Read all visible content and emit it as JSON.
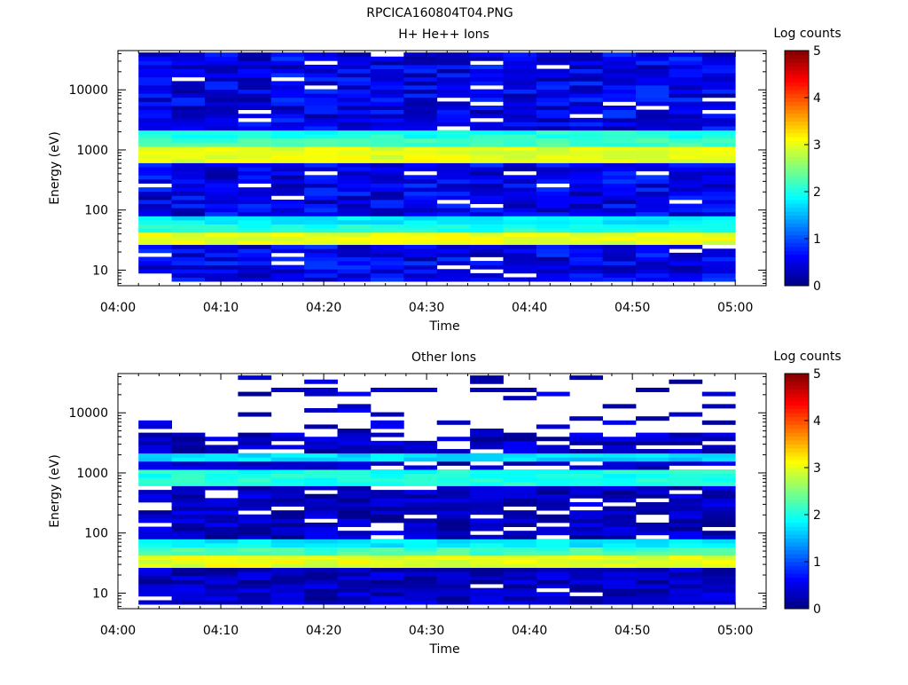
{
  "figure_title": "RPCICA160804T04.PNG",
  "chart_data": [
    {
      "type": "heatmap",
      "title": "H+ He++ Ions",
      "xlabel": "Time",
      "ylabel": "Energy (eV)",
      "x_ticks": [
        "04:00",
        "04:10",
        "04:20",
        "04:30",
        "04:40",
        "04:50",
        "05:00"
      ],
      "x_range": [
        "04:00",
        "05:03"
      ],
      "data_time_range": [
        "04:02",
        "05:00"
      ],
      "y_scale": "log",
      "y_ticks": [
        "10",
        "100",
        "1000",
        "10000"
      ],
      "y_range": [
        5.5,
        45000
      ],
      "colorbar_label": "Log counts",
      "colorbar_ticks": [
        "0",
        "1",
        "2",
        "3",
        "4",
        "5"
      ],
      "colorbar_range": [
        0,
        5
      ],
      "colormap": "jet",
      "grid": false,
      "bands": [
        {
          "energy_range_eV": [
            28,
            45
          ],
          "log_counts": 3.0
        },
        {
          "energy_range_eV": [
            45,
            60
          ],
          "log_counts": 2.0
        },
        {
          "energy_range_eV": [
            60,
            75
          ],
          "log_counts": 1.8
        },
        {
          "energy_range_eV": [
            650,
            1100
          ],
          "log_counts": 3.0
        },
        {
          "energy_range_eV": [
            1100,
            1500
          ],
          "log_counts": 2.2
        },
        {
          "energy_range_eV": [
            1500,
            2300
          ],
          "log_counts": 2.0
        }
      ]
    },
    {
      "type": "heatmap",
      "title": "Other Ions",
      "xlabel": "Time",
      "ylabel": "Energy (eV)",
      "x_ticks": [
        "04:00",
        "04:10",
        "04:20",
        "04:30",
        "04:40",
        "04:50",
        "05:00"
      ],
      "x_range": [
        "04:00",
        "05:03"
      ],
      "data_time_range": [
        "04:02",
        "05:00"
      ],
      "y_scale": "log",
      "y_ticks": [
        "10",
        "100",
        "1000",
        "10000"
      ],
      "y_range": [
        5.5,
        45000
      ],
      "colorbar_label": "Log counts",
      "colorbar_ticks": [
        "0",
        "1",
        "2",
        "3",
        "4",
        "5"
      ],
      "colorbar_range": [
        0,
        5
      ],
      "colormap": "jet",
      "grid": false,
      "bands": [
        {
          "energy_range_eV": [
            28,
            45
          ],
          "log_counts": 3.0
        },
        {
          "energy_range_eV": [
            45,
            60
          ],
          "log_counts": 2.2
        },
        {
          "energy_range_eV": [
            60,
            75
          ],
          "log_counts": 1.8
        },
        {
          "energy_range_eV": [
            650,
            1100
          ],
          "log_counts": 2.0
        },
        {
          "energy_range_eV": [
            1500,
            2300
          ],
          "log_counts": 1.7
        }
      ]
    }
  ]
}
